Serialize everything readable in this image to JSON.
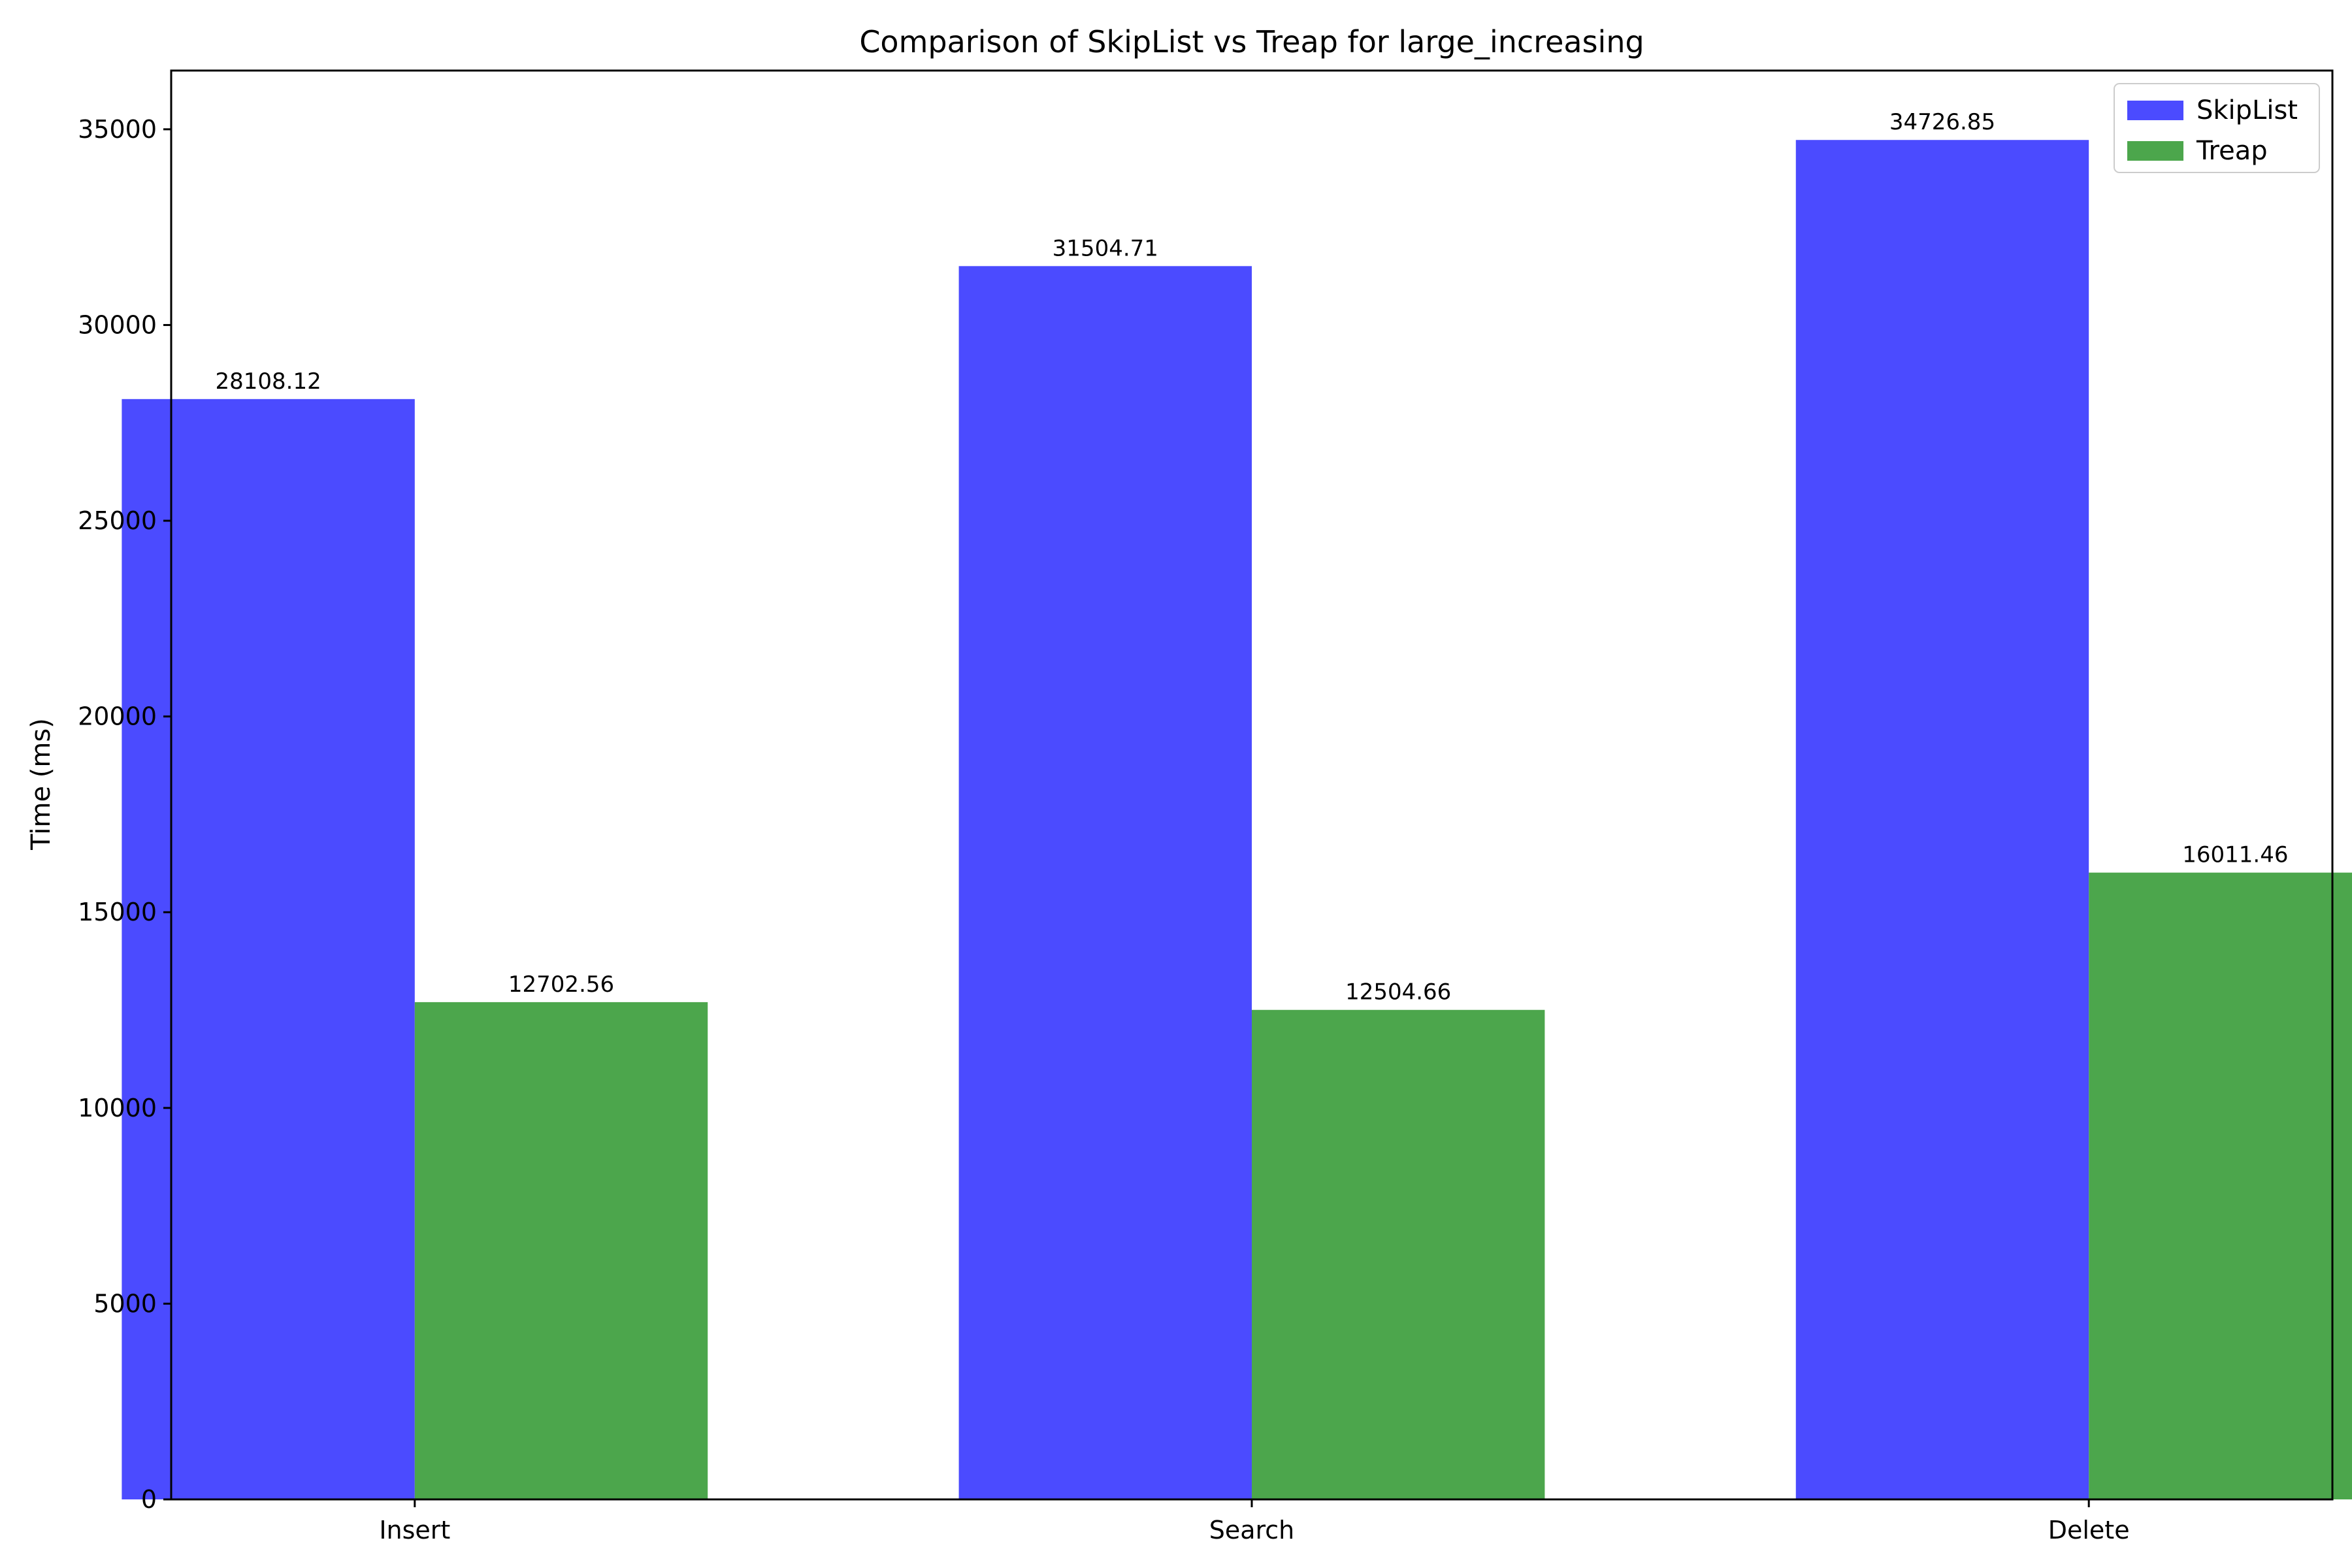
{
  "chart_data": {
    "type": "bar",
    "title": "Comparison of SkipList vs Treap for large_increasing",
    "xlabel": "",
    "ylabel": "Time (ms)",
    "categories": [
      "Insert",
      "Search",
      "Delete"
    ],
    "series": [
      {
        "name": "SkipList",
        "color": "#4b4bff",
        "values": [
          28108.12,
          31504.71,
          34726.85
        ]
      },
      {
        "name": "Treap",
        "color": "#4ca64c",
        "values": [
          12702.56,
          12504.66,
          16011.46
        ]
      }
    ],
    "data_labels": [
      [
        "28108.12",
        "31504.71",
        "34726.85"
      ],
      [
        "12702.56",
        "12504.66",
        "16011.46"
      ]
    ],
    "ylim": [
      0,
      36500
    ],
    "yticks": [
      0,
      5000,
      10000,
      15000,
      20000,
      25000,
      30000,
      35000
    ],
    "grid": false,
    "legend_position": "top-right"
  }
}
